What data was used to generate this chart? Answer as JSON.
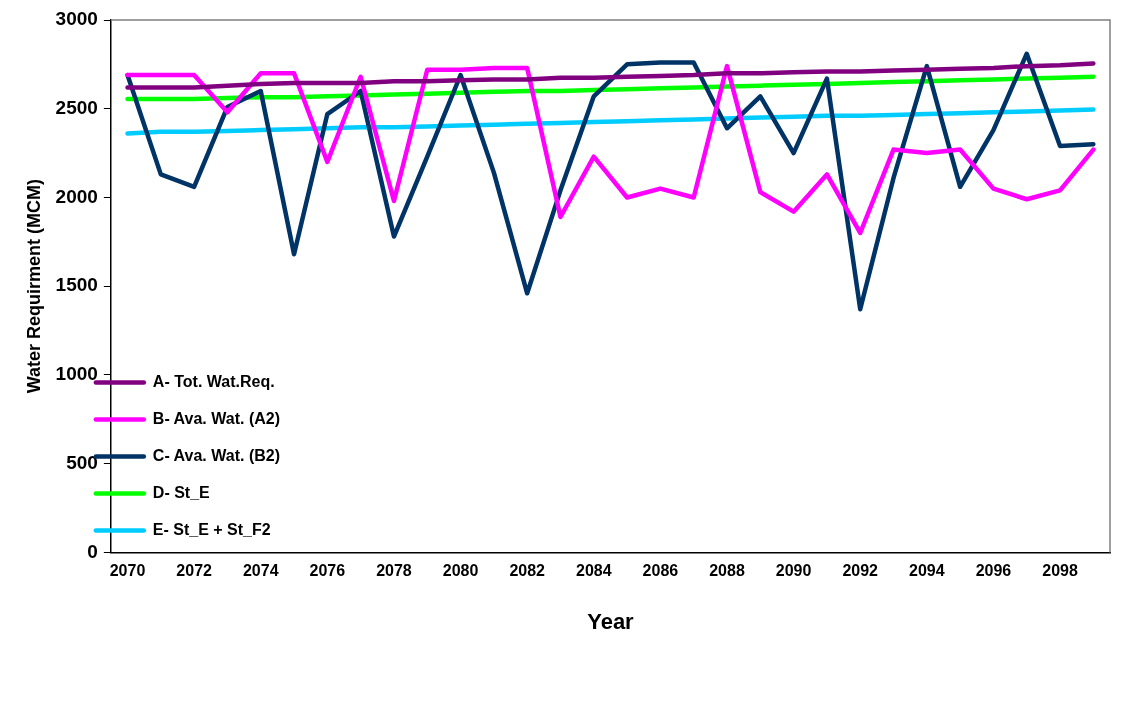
{
  "chart_data": {
    "type": "line",
    "xlabel": "Year",
    "ylabel": "Water Requirment (MCM)",
    "categories": [
      "2070",
      null,
      "2072",
      null,
      "2074",
      null,
      "2076",
      null,
      "2078",
      null,
      "2080",
      null,
      "2082",
      null,
      "2084",
      null,
      "2086",
      null,
      "2088",
      null,
      "2090",
      null,
      "2092",
      null,
      "2094",
      null,
      "2096",
      null,
      "2098",
      null
    ],
    "ylim": [
      0,
      3000
    ],
    "yticks": [
      0,
      500,
      1000,
      1500,
      2000,
      2500,
      3000
    ],
    "grid": false,
    "legend": "bottom left",
    "marker": "none",
    "line_style": "solid",
    "series": [
      {
        "name": "A- Tot. Wat.Req.",
        "color": "#800080",
        "values": [
          2620,
          2620,
          2620,
          2630,
          2640,
          2645,
          2645,
          2645,
          2655,
          2655,
          2660,
          2665,
          2665,
          2675,
          2675,
          2680,
          2685,
          2690,
          2700,
          2700,
          2705,
          2710,
          2710,
          2715,
          2720,
          2725,
          2730,
          2740,
          2745,
          2755
        ]
      },
      {
        "name": "B- Ava. Wat. (A2)",
        "color": "#ff00ff",
        "values": [
          2690,
          2690,
          2690,
          2480,
          2700,
          2700,
          2200,
          2680,
          1980,
          2720,
          2720,
          2730,
          2730,
          1890,
          2230,
          2000,
          2050,
          2000,
          2740,
          2030,
          1920,
          2130,
          1800,
          2270,
          2250,
          2270,
          2050,
          1990,
          2040,
          2270
        ]
      },
      {
        "name": "C- Ava. Wat. (B2)",
        "color": "#003366",
        "values": [
          2690,
          2130,
          2060,
          2510,
          2600,
          1680,
          2470,
          2600,
          1780,
          2230,
          2690,
          2140,
          1460,
          2040,
          2570,
          2750,
          2760,
          2760,
          2390,
          2570,
          2250,
          2670,
          1370,
          2110,
          2740,
          2060,
          2380,
          2810,
          2290,
          2300
        ]
      },
      {
        "name": "D- St_E",
        "color": "#00ff00",
        "values": [
          2555,
          2555,
          2555,
          2560,
          2565,
          2565,
          2570,
          2575,
          2580,
          2585,
          2590,
          2595,
          2600,
          2600,
          2605,
          2610,
          2615,
          2620,
          2625,
          2630,
          2635,
          2640,
          2645,
          2650,
          2655,
          2660,
          2665,
          2670,
          2675,
          2680
        ]
      },
      {
        "name": "E- St_E + St_F2",
        "color": "#00ccff",
        "values": [
          2360,
          2370,
          2370,
          2375,
          2380,
          2385,
          2390,
          2395,
          2395,
          2400,
          2405,
          2410,
          2415,
          2420,
          2425,
          2430,
          2435,
          2440,
          2445,
          2450,
          2455,
          2460,
          2460,
          2465,
          2470,
          2475,
          2480,
          2485,
          2490,
          2495
        ]
      }
    ]
  }
}
